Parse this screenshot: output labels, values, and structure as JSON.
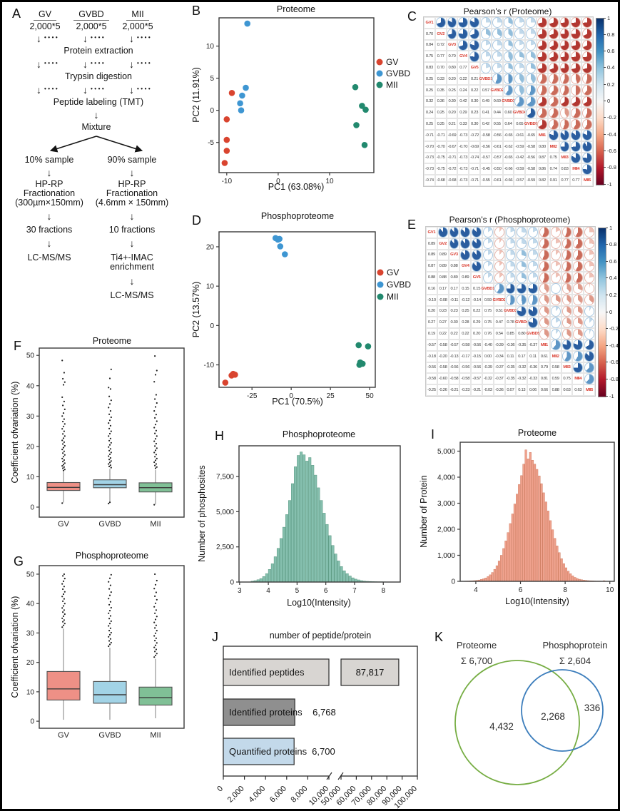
{
  "flow": {
    "letter": "A",
    "groups": [
      {
        "name": "GV",
        "count": "2,000*5"
      },
      {
        "name": "GVBD",
        "count": "2,000*5"
      },
      {
        "name": "MII",
        "count": "2,000*5"
      }
    ],
    "step1": "Protein extraction",
    "step2": "Trypsin digestion",
    "step3": "Peptide labeling (TMT)",
    "step4": "Mixture",
    "left": {
      "sample": "10% sample",
      "frac1": "HP-RP",
      "frac2": "Fractionation",
      "frac3": "(300µm×150mm)",
      "fractions": "30 fractions",
      "final": "LC-MS/MS"
    },
    "right": {
      "sample": "90% sample",
      "frac1": "HP-RP",
      "frac2": "Fractionation",
      "frac3": "(4.6mm × 150mm)",
      "fractions": "10 fractions",
      "enrich1": "Ti4+-IMAC",
      "enrich2": "enrichment",
      "final": "LC-MS/MS"
    },
    "arrow": "↓",
    "dots": "••••"
  },
  "chart_data": [
    {
      "id": "pca-proteome",
      "letter": "B",
      "type": "scatter",
      "title": "Proteome",
      "xlabel": "PC1 (63.08%)",
      "ylabel": "PC2 (11.91%)",
      "xticks": [
        -10,
        0,
        10
      ],
      "yticks": [
        -5,
        0,
        5,
        10
      ],
      "xlim": [
        -11.5,
        18.6
      ],
      "ylim": [
        -9.7,
        14.4
      ],
      "series": [
        {
          "name": "GV",
          "color": "#d9442f",
          "points": [
            [
              -9,
              2.7
            ],
            [
              -10,
              -1.4
            ],
            [
              -10,
              -4.6
            ],
            [
              -10,
              -6.3
            ],
            [
              -10.4,
              -8.2
            ]
          ]
        },
        {
          "name": "GVBD",
          "color": "#3e96d2",
          "points": [
            [
              -6,
              13.5
            ],
            [
              -6.3,
              3.5
            ],
            [
              -7,
              2.3
            ],
            [
              -7.4,
              1.1
            ],
            [
              -7.2,
              0
            ]
          ]
        },
        {
          "name": "MII",
          "color": "#22896e",
          "points": [
            [
              15,
              3.6
            ],
            [
              16.3,
              0.7
            ],
            [
              17,
              0.1
            ],
            [
              15.2,
              -2.3
            ],
            [
              16.8,
              -5.4
            ]
          ]
        }
      ]
    },
    {
      "id": "corr-proteome",
      "letter": "C",
      "type": "correlation",
      "title": "Pearson's r (Proteome)",
      "labels": [
        "GV1",
        "GV2",
        "GV3",
        "GV4",
        "GV5",
        "GVBD1",
        "GVBD2",
        "GVBD3",
        "GVBD4",
        "GVBD5",
        "MII1",
        "MII2",
        "MII3",
        "MII4",
        "MII5"
      ],
      "lower": [
        [
          "0.70"
        ],
        [
          "0.84",
          "0.72"
        ],
        [
          "0.75",
          "0.77",
          "0.70"
        ],
        [
          "0.83",
          "0.70",
          "0.80",
          "0.77"
        ],
        [
          "0.25",
          "0.33",
          "0.20",
          "0.22",
          "0.21"
        ],
        [
          "0.25",
          "0.35",
          "0.25",
          "0.24",
          "0.22",
          "0.57"
        ],
        [
          "0.32",
          "0.36",
          "0.30",
          "0.42",
          "0.30",
          "0.49",
          "0.60"
        ],
        [
          "0.24",
          "0.25",
          "0.20",
          "0.29",
          "0.23",
          "0.41",
          "0.44",
          "0.60"
        ],
        [
          "0.25",
          "0.25",
          "0.21",
          "0.33",
          "0.30",
          "0.42",
          "0.55",
          "0.64",
          "0.65"
        ],
        [
          "-0.71",
          "-0.71",
          "-0.69",
          "-0.73",
          "-0.72",
          "-0.58",
          "-0.56",
          "-0.65",
          "-0.61",
          "-0.65"
        ],
        [
          "-0.70",
          "-0.70",
          "-0.67",
          "-0.70",
          "-0.69",
          "-0.56",
          "-0.61",
          "-0.62",
          "-0.59",
          "-0.58",
          "0.80"
        ],
        [
          "-0.73",
          "-0.75",
          "-0.71",
          "-0.73",
          "-0.74",
          "-0.57",
          "-0.57",
          "-0.65",
          "-0.42",
          "-0.56",
          "0.87",
          "0.75"
        ],
        [
          "-0.73",
          "-0.75",
          "-0.72",
          "-0.73",
          "-0.71",
          "-0.45",
          "-0.50",
          "-0.66",
          "-0.59",
          "-0.58",
          "0.86",
          "0.74",
          "0.83"
        ],
        [
          "-0.74",
          "-0.68",
          "-0.68",
          "-0.73",
          "-0.71",
          "-0.55",
          "-0.61",
          "-0.66",
          "-0.57",
          "-0.59",
          "0.82",
          "0.91",
          "0.77",
          "0.77"
        ]
      ],
      "colorbar_ticks": [
        "1",
        "0.8",
        "0.6",
        "0.4",
        "0.2",
        "0",
        "-0.2",
        "-0.4",
        "-0.6",
        "-0.8",
        "-1"
      ]
    },
    {
      "id": "pca-phospho",
      "letter": "D",
      "type": "scatter",
      "title": "Phosphoproteome",
      "xlabel": "PC1 (70.5%)",
      "ylabel": "PC2 (13.57%)",
      "xticks": [
        -25,
        0,
        25,
        50
      ],
      "yticks": [
        -10,
        0,
        10,
        20
      ],
      "xlim": [
        -46,
        53.6
      ],
      "ylim": [
        -15.7,
        23.8
      ],
      "series": [
        {
          "name": "GV",
          "color": "#d9442f",
          "points": [
            [
              -37,
              -12.3
            ],
            [
              -35.8,
              -12.5
            ],
            [
              -38,
              -12.7
            ],
            [
              -36.5,
              -12.4
            ],
            [
              -42,
              -14.5
            ]
          ]
        },
        {
          "name": "GVBD",
          "color": "#3e96d2",
          "points": [
            [
              -10,
              22.2
            ],
            [
              -8.5,
              21.8
            ],
            [
              -7.5,
              22
            ],
            [
              -7,
              20.1
            ],
            [
              -4,
              18.1
            ]
          ]
        },
        {
          "name": "MII",
          "color": "#22896e",
          "points": [
            [
              43,
              -5
            ],
            [
              49,
              -5.3
            ],
            [
              44,
              -9.4
            ],
            [
              43.5,
              -10
            ],
            [
              45.5,
              -9.7
            ]
          ]
        }
      ]
    },
    {
      "id": "corr-phospho",
      "letter": "E",
      "type": "correlation",
      "title": "Pearson's r (Phosphoproteome)",
      "labels": [
        "GV1",
        "GV2",
        "GV3",
        "GV4",
        "GV5",
        "GVBD1",
        "GVBD2",
        "GVBD3",
        "GVBD4",
        "GVBD5",
        "MII1",
        "MII2",
        "MII3",
        "MII4",
        "MII5"
      ],
      "lower": [
        [
          "0.89"
        ],
        [
          "0.89",
          "0.89"
        ],
        [
          "0.87",
          "0.89",
          "0.88"
        ],
        [
          "0.88",
          "0.88",
          "0.89",
          "0.89"
        ],
        [
          "0.16",
          "0.17",
          "0.17",
          "0.15",
          "0.15"
        ],
        [
          "-0.10",
          "-0.08",
          "-0.11",
          "-0.12",
          "-0.14",
          "0.59"
        ],
        [
          "0.20",
          "0.23",
          "0.23",
          "0.25",
          "0.22",
          "0.75",
          "0.51"
        ],
        [
          "0.27",
          "0.27",
          "0.30",
          "0.28",
          "0.29",
          "0.75",
          "0.47",
          "0.78"
        ],
        [
          "0.19",
          "0.22",
          "0.22",
          "0.22",
          "0.20",
          "0.76",
          "0.54",
          "0.85",
          "0.80"
        ],
        [
          "-0.57",
          "-0.58",
          "-0.57",
          "-0.58",
          "-0.56",
          "-0.40",
          "-0.39",
          "-0.36",
          "-0.35",
          "-0.37"
        ],
        [
          "-0.18",
          "-0.20",
          "-0.13",
          "-0.17",
          "-0.15",
          "0.00",
          "-0.34",
          "0.11",
          "0.17",
          "0.11",
          "0.61"
        ],
        [
          "-0.56",
          "-0.58",
          "-0.56",
          "-0.56",
          "-0.56",
          "-0.39",
          "-0.37",
          "-0.35",
          "-0.32",
          "-0.36",
          "0.79",
          "0.58"
        ],
        [
          "-0.58",
          "-0.60",
          "-0.58",
          "-0.58",
          "-0.57",
          "-0.32",
          "-0.37",
          "-0.35",
          "-0.32",
          "-0.33",
          "0.81",
          "0.59",
          "0.75"
        ],
        [
          "-0.25",
          "-0.26",
          "-0.21",
          "-0.23",
          "-0.21",
          "-0.03",
          "-0.36",
          "0.07",
          "0.13",
          "0.06",
          "0.66",
          "0.88",
          "0.63",
          "0.63"
        ]
      ],
      "colorbar_ticks": [
        "1",
        "0.8",
        "0.6",
        "0.4",
        "0.2",
        "0",
        "-0.2",
        "-0.4",
        "-0.6",
        "-0.8",
        "-1"
      ]
    },
    {
      "id": "cv-proteome",
      "letter": "F",
      "type": "boxplot",
      "title": "Proteome",
      "ylabel": "Coefficient ofvariation (%)",
      "yticks": [
        0,
        10,
        20,
        30,
        40,
        50
      ],
      "categories": [
        "GV",
        "GVBD",
        "MII"
      ],
      "boxes": [
        {
          "name": "GV",
          "color": "#ee9086",
          "lo": 1.5,
          "q1": 5.5,
          "med": 6.5,
          "q3": 8.1,
          "hi": 11.5,
          "outliers": [
            1.3,
            12,
            12.4,
            12.8,
            13.2,
            13.6,
            14,
            14.5,
            15,
            15.5,
            16,
            16.6,
            17.2,
            17.8,
            18.4,
            19,
            19.6,
            20.2,
            20.8,
            21.4,
            22,
            22.7,
            23.4,
            24.1,
            25,
            25.8,
            26.6,
            27.4,
            28.2,
            29,
            30,
            31,
            32.2,
            33.5,
            34.8,
            36.2,
            40.3,
            41.2,
            42.3,
            44.3,
            48.3
          ]
        },
        {
          "name": "GVBD",
          "color": "#a2d3e6",
          "lo": 1.4,
          "q1": 6.4,
          "med": 7.4,
          "q3": 9.0,
          "hi": 12.6,
          "outliers": [
            1.2,
            1.6,
            13,
            13.4,
            13.8,
            14.2,
            14.7,
            15.2,
            15.7,
            16.2,
            16.8,
            17.4,
            18,
            18.6,
            19.2,
            19.8,
            20.5,
            21.2,
            21.9,
            22.6,
            23.4,
            24.2,
            25,
            25.9,
            26.8,
            27.7,
            28.6,
            29.6,
            30.6,
            31.7,
            32.8,
            34,
            35.2,
            36.5,
            38.9,
            39.4,
            42.4,
            45.4
          ]
        },
        {
          "name": "MII",
          "color": "#80c096",
          "lo": 0.9,
          "q1": 5.0,
          "med": 6.4,
          "q3": 8.0,
          "hi": 12.2,
          "outliers": [
            0.8,
            12.8,
            13.2,
            13.7,
            14.2,
            14.8,
            15.4,
            16,
            16.6,
            17.3,
            18,
            18.7,
            19.4,
            20.1,
            20.9,
            21.7,
            22.5,
            23.4,
            24.3,
            25.2,
            26.2,
            27.2,
            28.3,
            29.4,
            30.5,
            31.7,
            33,
            34.3,
            35.6,
            37,
            41.3,
            43.6,
            45,
            49.8
          ]
        }
      ]
    },
    {
      "id": "cv-phospho",
      "letter": "G",
      "type": "boxplot",
      "title": "Phosphoproteome",
      "ylabel": "Coefficient ofvariation (%)",
      "yticks": [
        0,
        10,
        20,
        30,
        40,
        50
      ],
      "categories": [
        "GV",
        "GVBD",
        "MII"
      ],
      "boxes": [
        {
          "name": "GV",
          "color": "#ee9086",
          "lo": 0.5,
          "q1": 7.2,
          "med": 11.0,
          "q3": 16.9,
          "hi": 31.5,
          "outliers": [
            32,
            32.6,
            33.2,
            33.8,
            34.4,
            35,
            35.7,
            36.4,
            37.1,
            37.8,
            38.5,
            39.2,
            40,
            40.8,
            41.6,
            42.4,
            43.2,
            44,
            44.9,
            45.8,
            46.7,
            47.6,
            48.5,
            49.4,
            50
          ]
        },
        {
          "name": "GVBD",
          "color": "#a2d3e6",
          "lo": 0.5,
          "q1": 6.1,
          "med": 9.0,
          "q3": 13.5,
          "hi": 25.0,
          "outliers": [
            25.5,
            26.1,
            26.7,
            27.3,
            28,
            28.7,
            29.4,
            30.1,
            30.8,
            31.6,
            32.4,
            33.2,
            34,
            34.9,
            35.8,
            36.7,
            37.6,
            38.6,
            39.6,
            40.6,
            41.7,
            42.8,
            43.9,
            45,
            46.2,
            47.4,
            48.6,
            49.8
          ]
        },
        {
          "name": "MII",
          "color": "#80c096",
          "lo": 1.0,
          "q1": 5.5,
          "med": 8.0,
          "q3": 11.6,
          "hi": 21.2,
          "outliers": [
            21.8,
            22.4,
            23,
            23.7,
            24.4,
            25.1,
            25.8,
            26.6,
            27.4,
            28.2,
            29,
            29.9,
            30.8,
            31.7,
            32.6,
            33.6,
            34.6,
            35.6,
            36.7,
            37.8,
            38.9,
            40.1,
            41.3,
            42.5,
            43.8,
            45.1,
            46.4,
            47.8,
            50
          ]
        }
      ]
    },
    {
      "id": "hist-phospho",
      "letter": "H",
      "type": "histogram",
      "title": "Phosphoproteome",
      "xlabel": "Log10(Intensity)",
      "ylabel": "Number of phosphosites",
      "xticks": [
        3,
        4,
        5,
        6,
        7,
        8
      ],
      "yticks": [
        0,
        2500,
        5000,
        7500
      ],
      "ytick_labels": [
        "0",
        "2,500",
        "5,000",
        "7,500"
      ],
      "x_start": 3.4,
      "bin": 0.1,
      "color": "#85bfae",
      "edge": "#56977f",
      "values": [
        60,
        100,
        160,
        250,
        390,
        600,
        900,
        1300,
        1800,
        2400,
        3100,
        3900,
        4800,
        5800,
        7000,
        8200,
        9000,
        9250,
        9050,
        8600,
        8850,
        8300,
        7600,
        6700,
        5800,
        4900,
        4100,
        3300,
        2600,
        2000,
        1500,
        1100,
        800,
        600,
        430,
        300,
        210,
        150,
        100,
        70,
        50,
        40,
        30,
        25,
        20,
        18,
        15,
        12,
        10,
        10,
        8,
        8
      ]
    },
    {
      "id": "hist-proteome",
      "letter": "I",
      "type": "histogram",
      "title": "Proteome",
      "xlabel": "Log10(Intensity)",
      "ylabel": "Number of Protein",
      "xticks": [
        4,
        6,
        8,
        10
      ],
      "yticks": [
        0,
        1000,
        2000,
        3000,
        4000,
        5000
      ],
      "ytick_labels": [
        "0",
        "1,000",
        "2,000",
        "3,000",
        "4,000",
        "5,000"
      ],
      "x_start": 3.5,
      "bin": 0.1,
      "color": "#f0a28e",
      "edge": "#cf7a5e",
      "values": [
        12,
        15,
        18,
        22,
        28,
        35,
        50,
        70,
        95,
        130,
        180,
        250,
        340,
        460,
        600,
        780,
        1000,
        1260,
        1550,
        1870,
        2220,
        2590,
        2970,
        3350,
        3720,
        4060,
        4500,
        5050,
        4700,
        4950,
        4650,
        4500,
        4300,
        4050,
        3750,
        3400,
        3050,
        2700,
        2330,
        1980,
        1650,
        1360,
        1100,
        870,
        680,
        520,
        390,
        290,
        210,
        150,
        110,
        80,
        60,
        45,
        35,
        28,
        22,
        18,
        15,
        12,
        10,
        9,
        25,
        8,
        6
      ]
    },
    {
      "id": "peptide-protein-counts",
      "letter": "J",
      "type": "bar-broken",
      "title": "number of peptide/protein",
      "bars": [
        {
          "label": "Identified peptides",
          "value": 87817,
          "value_label": "87,817",
          "color": "#d8d5d2"
        },
        {
          "label": "Identified proteins",
          "value": 6768,
          "value_label": "6,768",
          "color": "#8f8f8f"
        },
        {
          "label": "Quantified proteins",
          "value": 6700,
          "value_label": "6,700",
          "color": "#c3d9ea"
        }
      ],
      "tick_labels": [
        "0",
        "2,000",
        "4,000",
        "6,000",
        "8,000",
        "10,000",
        "50,000",
        "60,000",
        "70,000",
        "80,000",
        "90,000",
        "100,000"
      ]
    },
    {
      "id": "venn-proteome-phospho",
      "letter": "K",
      "type": "venn",
      "left": {
        "name": "Proteome",
        "total": "Σ 6,700",
        "only": "4,432",
        "color": "#76ad43"
      },
      "right": {
        "name": "Phosphoprotein",
        "total": "Σ 2,604",
        "only": "336",
        "color": "#3d7ebc"
      },
      "intersection": "2,268"
    }
  ]
}
